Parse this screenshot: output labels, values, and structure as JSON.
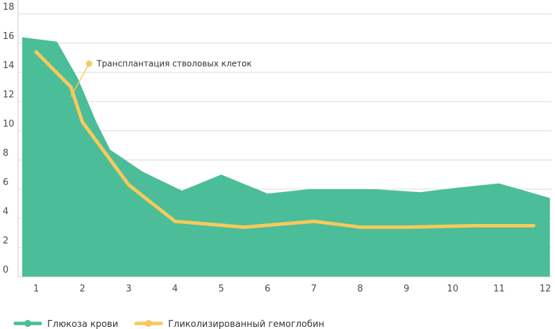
{
  "chart_data": {
    "type": "area",
    "x": [
      1,
      2,
      3,
      4,
      5,
      6,
      7,
      8,
      9,
      10,
      11,
      12
    ],
    "xlim": [
      0.7,
      12.1
    ],
    "ylim": [
      0,
      18
    ],
    "y_ticks": [
      0,
      2,
      4,
      6,
      8,
      10,
      12,
      14,
      16,
      18
    ],
    "grid": true,
    "legend_position": "bottom-left",
    "series": [
      {
        "name": "Глюкоза крови",
        "type": "area",
        "color": "#4bbd98",
        "points": [
          [
            0.7,
            16.4
          ],
          [
            1.45,
            16.1
          ],
          [
            1.9,
            13.6
          ],
          [
            2.3,
            10.6
          ],
          [
            2.6,
            8.7
          ],
          [
            3.3,
            7.2
          ],
          [
            4.15,
            5.9
          ],
          [
            5.0,
            7.0
          ],
          [
            6.0,
            5.7
          ],
          [
            6.9,
            6.0
          ],
          [
            8.3,
            6.0
          ],
          [
            9.3,
            5.8
          ],
          [
            10.1,
            6.1
          ],
          [
            11.0,
            6.4
          ],
          [
            12.1,
            5.4
          ]
        ]
      },
      {
        "name": "Гликолизированный гемоглобин",
        "type": "line",
        "color": "#f7c95c",
        "points": [
          [
            1.0,
            15.4
          ],
          [
            1.75,
            13.0
          ],
          [
            2.0,
            10.6
          ],
          [
            3.0,
            6.3
          ],
          [
            4.0,
            3.8
          ],
          [
            5.5,
            3.4
          ],
          [
            7.0,
            3.8
          ],
          [
            8.0,
            3.4
          ],
          [
            9.0,
            3.4
          ],
          [
            10.5,
            3.5
          ],
          [
            11.75,
            3.5
          ]
        ]
      }
    ],
    "annotations": [
      {
        "text": "Трансплантация стволовых клеток",
        "target": [
          1.75,
          13.0
        ],
        "label_anchor": [
          2.1,
          14.5
        ]
      }
    ]
  }
}
